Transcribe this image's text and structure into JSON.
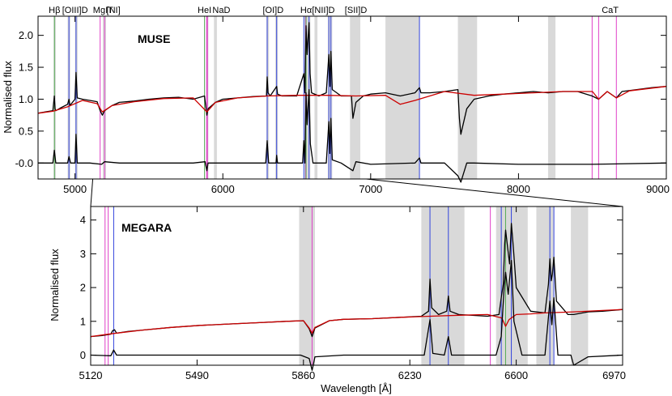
{
  "chart_data": [
    {
      "type": "line",
      "instrument_label": "MUSE",
      "ylabel": "Normalised flux",
      "xlim": [
        4750,
        9000
      ],
      "ylim": [
        -0.25,
        2.3
      ],
      "x_ticks": [
        "5000",
        "6000",
        "7000",
        "8000",
        "9000"
      ],
      "x_tick_values": [
        5000,
        6000,
        7000,
        8000,
        9000
      ],
      "y_ticks": [
        "-0.0",
        "0.5",
        "1.0",
        "1.5",
        "2.0"
      ],
      "y_tick_values": [
        0,
        0.5,
        1.0,
        1.5,
        2.0
      ],
      "line_labels": [
        {
          "text": "Hβ",
          "x": 4861
        },
        {
          "text": "[OIII]D",
          "x": 5000
        },
        {
          "text": "MgIT",
          "x": 5190
        },
        {
          "text": "[NI]",
          "x": 5260
        },
        {
          "text": "HeI",
          "x": 5876
        },
        {
          "text": "NaD",
          "x": 5990
        },
        {
          "text": "[OI]D",
          "x": 6340
        },
        {
          "text": "Hα",
          "x": 6563
        },
        {
          "text": "[NII]D",
          "x": 6680
        },
        {
          "text": "[SII]D",
          "x": 6900
        },
        {
          "text": "CaT",
          "x": 8620
        }
      ],
      "shaded_regions": [
        [
          4855,
          4870
        ],
        [
          4950,
          4968
        ],
        [
          5000,
          5018
        ],
        [
          5188,
          5210
        ],
        [
          5888,
          5902
        ],
        [
          5940,
          5960
        ],
        [
          6295,
          6312
        ],
        [
          6355,
          6372
        ],
        [
          6552,
          6575
        ],
        [
          6575,
          6592
        ],
        [
          6620,
          6640
        ],
        [
          6710,
          6725
        ],
        [
          6725,
          6740
        ],
        [
          6860,
          6930
        ],
        [
          7100,
          7330
        ],
        [
          7590,
          7720
        ],
        [
          8200,
          8250
        ]
      ],
      "blue_lines": [
        4959,
        5007,
        6300,
        6364,
        6548,
        6583,
        6717,
        6731,
        7330
      ],
      "magenta_lines": [
        5170,
        5200,
        5890,
        5896,
        6560,
        8498,
        8542,
        8662
      ],
      "green_lines": [
        4861,
        5876,
        6563
      ],
      "series": [
        {
          "name": "",
          "color": "#000000",
          "x": [
            4750,
            4800,
            4850,
            4860,
            4865,
            4870,
            4900,
            4950,
            4959,
            4965,
            5000,
            5007,
            5015,
            5050,
            5100,
            5150,
            5170,
            5185,
            5200,
            5250,
            5300,
            5400,
            5500,
            5600,
            5700,
            5800,
            5876,
            5885,
            5892,
            5900,
            5950,
            6000,
            6100,
            6200,
            6295,
            6300,
            6306,
            6320,
            6364,
            6370,
            6400,
            6500,
            6548,
            6555,
            6563,
            6570,
            6583,
            6590,
            6600,
            6650,
            6700,
            6717,
            6725,
            6731,
            6740,
            6800,
            6870,
            6880,
            6900,
            6950,
            7000,
            7100,
            7200,
            7300,
            7330,
            7340,
            7400,
            7500,
            7590,
            7600,
            7610,
            7650,
            7700,
            7800,
            7900,
            8000,
            8100,
            8200,
            8300,
            8400,
            8498,
            8542,
            8600,
            8662,
            8700,
            8800,
            8900,
            9000
          ],
          "values": [
            0.78,
            0.8,
            0.82,
            1.05,
            0.85,
            0.82,
            0.86,
            0.92,
            1.0,
            0.9,
            1.0,
            1.42,
            1.02,
            1.0,
            0.98,
            0.96,
            0.82,
            0.75,
            0.82,
            0.9,
            0.95,
            0.97,
            1.0,
            1.02,
            1.03,
            1.0,
            1.05,
            0.88,
            0.75,
            0.85,
            0.95,
            1.0,
            1.02,
            1.04,
            1.05,
            1.35,
            1.1,
            1.05,
            1.2,
            1.08,
            1.05,
            1.05,
            1.4,
            1.1,
            2.15,
            1.7,
            2.2,
            1.4,
            1.1,
            1.05,
            1.1,
            1.7,
            1.2,
            1.75,
            1.15,
            1.05,
            1.05,
            0.7,
            0.95,
            1.05,
            1.08,
            1.1,
            1.05,
            1.1,
            1.18,
            1.1,
            1.1,
            1.12,
            1.15,
            0.7,
            0.45,
            0.85,
            1.0,
            1.05,
            1.08,
            1.1,
            1.12,
            1.1,
            1.12,
            1.12,
            1.05,
            1.0,
            1.12,
            1.02,
            1.12,
            1.15,
            1.18,
            1.2
          ]
        },
        {
          "name": "",
          "color": "#cc0000",
          "x": [
            4750,
            4850,
            4950,
            5050,
            5150,
            5185,
            5250,
            5400,
            5600,
            5800,
            5892,
            5950,
            6100,
            6300,
            6500,
            6700,
            6900,
            7100,
            7200,
            7300,
            7500,
            7700,
            7900,
            8100,
            8300,
            8500,
            8542,
            8600,
            8662,
            8750,
            9000
          ],
          "values": [
            0.78,
            0.81,
            0.88,
            0.98,
            0.93,
            0.8,
            0.9,
            0.96,
            1.01,
            1.02,
            0.8,
            0.95,
            1.02,
            1.05,
            1.06,
            1.06,
            1.05,
            1.06,
            0.92,
            0.98,
            1.12,
            1.06,
            1.08,
            1.1,
            1.12,
            1.12,
            1.0,
            1.12,
            1.02,
            1.13,
            1.2
          ]
        },
        {
          "name": "",
          "color": "#000000",
          "x": [
            4750,
            4850,
            4860,
            4870,
            4950,
            4959,
            4970,
            5000,
            5007,
            5015,
            5100,
            5180,
            5200,
            5300,
            5800,
            5880,
            5892,
            5900,
            6000,
            6290,
            6300,
            6310,
            6360,
            6364,
            6370,
            6540,
            6548,
            6555,
            6563,
            6570,
            6583,
            6592,
            6610,
            6700,
            6717,
            6724,
            6731,
            6740,
            6800,
            6880,
            6900,
            7000,
            7300,
            7330,
            7340,
            7500,
            7590,
            7610,
            7650,
            7700,
            8000,
            8500,
            9000
          ],
          "values": [
            0.0,
            0.0,
            0.2,
            0.0,
            0.0,
            0.1,
            0.0,
            0.0,
            0.45,
            0.0,
            0.0,
            -0.02,
            0.02,
            0.0,
            0.0,
            0.02,
            -0.12,
            0.0,
            0.0,
            0.0,
            0.35,
            0.0,
            0.0,
            0.12,
            0.0,
            0.0,
            0.35,
            0.0,
            1.1,
            0.6,
            1.15,
            0.3,
            0.0,
            0.0,
            0.65,
            0.15,
            0.7,
            0.05,
            0.0,
            -0.12,
            0.02,
            -0.02,
            0.0,
            0.08,
            0.0,
            0.0,
            -0.2,
            -0.3,
            0.0,
            0.0,
            -0.02,
            -0.02,
            0.0
          ]
        }
      ]
    },
    {
      "type": "line",
      "instrument_label": "MEGARA",
      "ylabel": "Normalised flux",
      "xlabel": "Wavelength [Å]",
      "xlim": [
        5120,
        6970
      ],
      "ylim": [
        -0.3,
        4.4
      ],
      "x_ticks": [
        "5120",
        "5490",
        "5860",
        "6230",
        "6600",
        "6970"
      ],
      "x_tick_values": [
        5120,
        5490,
        5860,
        6230,
        6600,
        6970
      ],
      "y_ticks": [
        "0",
        "1",
        "2",
        "3",
        "4"
      ],
      "y_tick_values": [
        0,
        1,
        2,
        3,
        4
      ],
      "shaded_regions": [
        [
          5845,
          5900
        ],
        [
          6270,
          6420
        ],
        [
          6530,
          6640
        ],
        [
          6670,
          6730
        ],
        [
          6790,
          6850
        ]
      ],
      "blue_lines": [
        5200,
        6300,
        6364,
        6548,
        6583,
        6717,
        6731
      ],
      "magenta_lines": [
        5170,
        5181,
        5890,
        6510
      ],
      "green_lines": [
        6563
      ],
      "series": [
        {
          "name": "",
          "color": "#000000",
          "x": [
            5120,
            5160,
            5190,
            5196,
            5203,
            5210,
            5250,
            5300,
            5400,
            5500,
            5600,
            5700,
            5800,
            5860,
            5880,
            5890,
            5900,
            5950,
            6000,
            6100,
            6200,
            6270,
            6295,
            6300,
            6306,
            6330,
            6358,
            6364,
            6370,
            6400,
            6500,
            6540,
            6548,
            6555,
            6560,
            6563,
            6570,
            6577,
            6583,
            6590,
            6600,
            6650,
            6700,
            6712,
            6717,
            6722,
            6726,
            6731,
            6740,
            6780,
            6800,
            6850,
            6900,
            6970
          ],
          "values": [
            0.55,
            0.58,
            0.62,
            0.72,
            0.75,
            0.65,
            0.7,
            0.74,
            0.82,
            0.88,
            0.92,
            0.96,
            1.0,
            1.02,
            0.78,
            0.55,
            0.8,
            1.02,
            1.06,
            1.08,
            1.12,
            1.15,
            1.3,
            2.25,
            1.4,
            1.2,
            1.3,
            1.75,
            1.3,
            1.2,
            1.15,
            1.2,
            1.7,
            2.1,
            3.3,
            3.7,
            3.2,
            2.7,
            3.9,
            3.2,
            2.0,
            1.3,
            1.25,
            2.1,
            2.85,
            2.2,
            2.4,
            2.9,
            1.6,
            1.2,
            1.2,
            1.28,
            1.3,
            1.35
          ]
        },
        {
          "name": "",
          "color": "#cc0000",
          "x": [
            5120,
            5200,
            5300,
            5400,
            5500,
            5600,
            5700,
            5800,
            5860,
            5880,
            5890,
            5900,
            5950,
            6000,
            6100,
            6200,
            6300,
            6400,
            6500,
            6550,
            6563,
            6575,
            6600,
            6650,
            6700,
            6800,
            6900,
            6970
          ],
          "values": [
            0.55,
            0.64,
            0.74,
            0.82,
            0.88,
            0.92,
            0.96,
            1.0,
            1.02,
            0.8,
            0.65,
            0.82,
            1.02,
            1.06,
            1.08,
            1.12,
            1.15,
            1.18,
            1.2,
            1.1,
            0.85,
            1.05,
            1.2,
            1.22,
            1.25,
            1.28,
            1.32,
            1.35
          ]
        },
        {
          "name": "",
          "color": "#000000",
          "x": [
            5120,
            5190,
            5200,
            5210,
            5300,
            5850,
            5880,
            5890,
            5900,
            6000,
            6280,
            6300,
            6310,
            6350,
            6364,
            6375,
            6530,
            6548,
            6558,
            6563,
            6572,
            6583,
            6592,
            6620,
            6700,
            6717,
            6724,
            6731,
            6745,
            6790,
            6800,
            6850,
            6970
          ],
          "values": [
            0.0,
            -0.02,
            0.15,
            0.0,
            0.0,
            0.0,
            -0.1,
            -0.45,
            -0.05,
            0.0,
            0.0,
            1.05,
            0.05,
            0.0,
            0.55,
            0.0,
            0.0,
            0.55,
            2.0,
            2.45,
            1.8,
            2.8,
            1.0,
            0.0,
            0.0,
            1.6,
            0.9,
            1.7,
            0.0,
            0.0,
            -0.3,
            -0.05,
            0.0
          ]
        }
      ]
    }
  ]
}
